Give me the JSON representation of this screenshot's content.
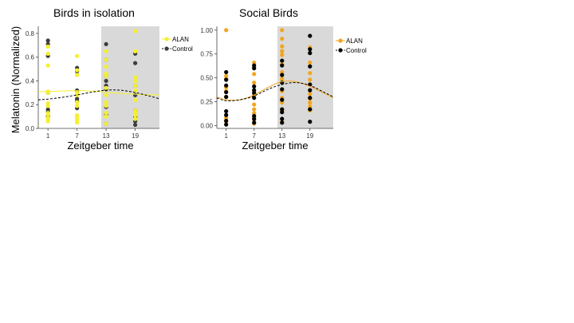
{
  "figure": {
    "ylabel": "Melatonin (Normalized)"
  },
  "chart_data": [
    {
      "type": "scatter",
      "title": "Birds in isolation",
      "xlabel": "Zeitgeber time",
      "ylabel": "Melatonin (Normalized)",
      "xticks": [
        "1",
        "7",
        "13",
        "19"
      ],
      "yticks": [
        "0.0",
        "0.2",
        "0.4",
        "0.6",
        "0.8"
      ],
      "xlim": [
        -1,
        24
      ],
      "ylim": [
        0,
        0.86
      ],
      "dark_period": [
        12,
        24
      ],
      "grid": false,
      "legend_position": "right",
      "series": [
        {
          "name": "ALAN",
          "color": "#f5ef2e",
          "line_style": "solid",
          "x": [
            1,
            1,
            1,
            1,
            1,
            1,
            1,
            1,
            1,
            1,
            1,
            1,
            7,
            7,
            7,
            7,
            7,
            7,
            7,
            7,
            7,
            7,
            7,
            13,
            13,
            13,
            13,
            13,
            13,
            13,
            13,
            13,
            13,
            13,
            13,
            19,
            19,
            19,
            19,
            19,
            19,
            19,
            19,
            19,
            19,
            19
          ],
          "y": [
            0.69,
            0.63,
            0.53,
            0.3,
            0.31,
            0.21,
            0.19,
            0.13,
            0.12,
            0.09,
            0.08,
            0.06,
            0.61,
            0.49,
            0.45,
            0.3,
            0.28,
            0.22,
            0.19,
            0.11,
            0.09,
            0.07,
            0.05,
            0.65,
            0.58,
            0.52,
            0.46,
            0.44,
            0.34,
            0.28,
            0.22,
            0.19,
            0.13,
            0.1,
            0.04,
            0.82,
            0.65,
            0.43,
            0.4,
            0.36,
            0.32,
            0.24,
            0.15,
            0.13,
            0.11,
            0.08
          ],
          "fit": {
            "x": [
              -1,
              1,
              4,
              7,
              10,
              13,
              16,
              19,
              22,
              24
            ],
            "y": [
              0.31,
              0.31,
              0.315,
              0.318,
              0.315,
              0.305,
              0.295,
              0.288,
              0.283,
              0.282
            ]
          }
        },
        {
          "name": "Control",
          "color": "#3d3d3d",
          "line_style": "dashed",
          "x": [
            1,
            1,
            1,
            1,
            1,
            1,
            1,
            7,
            7,
            7,
            7,
            7,
            7,
            13,
            13,
            13,
            13,
            13,
            13,
            13,
            13,
            13,
            19,
            19,
            19,
            19,
            19,
            19,
            19,
            19
          ],
          "y": [
            0.74,
            0.71,
            0.61,
            0.3,
            0.16,
            0.14,
            0.1,
            0.51,
            0.48,
            0.32,
            0.25,
            0.23,
            0.17,
            0.71,
            0.58,
            0.44,
            0.4,
            0.36,
            0.33,
            0.18,
            0.12,
            0.04,
            0.63,
            0.55,
            0.36,
            0.28,
            0.15,
            0.1,
            0.06,
            0.03
          ],
          "fit": {
            "x": [
              -1,
              1,
              4,
              7,
              10,
              13,
              16,
              19,
              22,
              24
            ],
            "y": [
              0.24,
              0.247,
              0.262,
              0.282,
              0.305,
              0.322,
              0.322,
              0.302,
              0.272,
              0.25
            ]
          }
        }
      ]
    },
    {
      "type": "scatter",
      "title": "Social Birds",
      "xlabel": "Zeitgeber time",
      "ylabel": "",
      "xticks": [
        "1",
        "7",
        "13",
        "19"
      ],
      "yticks": [
        "0.00",
        "0.25",
        "0.50",
        "0.75",
        "1.00"
      ],
      "xlim": [
        -1,
        24
      ],
      "ylim": [
        -0.03,
        1.04
      ],
      "dark_period": [
        12,
        24
      ],
      "grid": false,
      "legend_position": "right",
      "series": [
        {
          "name": "ALAN",
          "color": "#f2a51e",
          "line_style": "solid",
          "x": [
            1,
            1,
            1,
            1,
            1,
            1,
            1,
            1,
            7,
            7,
            7,
            7,
            7,
            7,
            7,
            7,
            7,
            7,
            7,
            7,
            13,
            13,
            13,
            13,
            13,
            13,
            13,
            13,
            13,
            13,
            13,
            13,
            13,
            13,
            19,
            19,
            19,
            19,
            19,
            19,
            19,
            19,
            19,
            19,
            19
          ],
          "y": [
            1.0,
            0.52,
            0.49,
            0.4,
            0.36,
            0.3,
            0.08,
            0.04,
            0.66,
            0.61,
            0.54,
            0.45,
            0.36,
            0.31,
            0.22,
            0.17,
            0.13,
            0.09,
            0.06,
            0.02,
            1.0,
            0.91,
            0.83,
            0.78,
            0.74,
            0.64,
            0.56,
            0.49,
            0.45,
            0.36,
            0.29,
            0.24,
            0.16,
            0.04,
            0.82,
            0.76,
            0.66,
            0.55,
            0.48,
            0.43,
            0.33,
            0.28,
            0.24,
            0.2,
            0.16
          ],
          "fit": {
            "x": [
              -1,
              1,
              4,
              7,
              10,
              13,
              16,
              19,
              22,
              24
            ],
            "y": [
              0.3,
              0.27,
              0.27,
              0.32,
              0.4,
              0.46,
              0.46,
              0.41,
              0.34,
              0.29
            ]
          }
        },
        {
          "name": "Control",
          "color": "#000000",
          "line_style": "dashed",
          "x": [
            1,
            1,
            1,
            1,
            1,
            1,
            1,
            1,
            1,
            7,
            7,
            7,
            7,
            7,
            7,
            7,
            7,
            7,
            13,
            13,
            13,
            13,
            13,
            13,
            13,
            13,
            13,
            13,
            19,
            19,
            19,
            19,
            19,
            19,
            19,
            19,
            19
          ],
          "y": [
            0.56,
            0.48,
            0.42,
            0.35,
            0.3,
            0.15,
            0.11,
            0.05,
            0.01,
            0.63,
            0.6,
            0.41,
            0.37,
            0.34,
            0.29,
            0.1,
            0.07,
            0.03,
            0.68,
            0.63,
            0.53,
            0.45,
            0.38,
            0.27,
            0.17,
            0.14,
            0.07,
            0.03,
            0.94,
            0.8,
            0.76,
            0.62,
            0.43,
            0.37,
            0.29,
            0.17,
            0.04
          ],
          "fit": {
            "x": [
              -1,
              1,
              4,
              7,
              10,
              13,
              16,
              19,
              22,
              24
            ],
            "y": [
              0.29,
              0.26,
              0.27,
              0.31,
              0.38,
              0.43,
              0.45,
              0.42,
              0.35,
              0.3
            ]
          }
        }
      ]
    }
  ]
}
